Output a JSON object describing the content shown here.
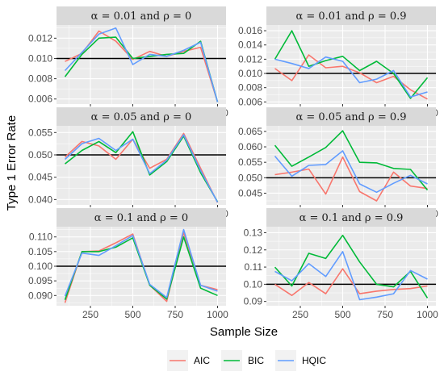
{
  "chart_data": {
    "type": "line",
    "xlabel": "Sample Size",
    "ylabel": "Type 1 Error Rate",
    "legend_position": "bottom",
    "x": [
      100,
      200,
      300,
      400,
      500,
      600,
      700,
      800,
      900,
      1000
    ],
    "x_ticks": [
      250,
      500,
      750,
      1000
    ],
    "series_names": [
      "AIC",
      "BIC",
      "HQIC"
    ],
    "colors": {
      "AIC": "#F8766D",
      "BIC": "#00BA38",
      "HQIC": "#619CFF"
    },
    "panels": [
      {
        "strip": "α = 0.01 and ρ = 0",
        "ylim": [
          0.0055,
          0.0133
        ],
        "yticks": [
          0.006,
          0.008,
          0.01,
          0.012
        ],
        "ytick_labels": [
          "0.006",
          "0.008",
          "0.010",
          "0.012"
        ],
        "ref": 0.01,
        "series": [
          {
            "name": "AIC",
            "values": [
              0.0097,
              0.0105,
              0.0127,
              0.0117,
              0.0099,
              0.0107,
              0.0102,
              0.0107,
              0.0111,
              0.0057
            ]
          },
          {
            "name": "BIC",
            "values": [
              0.0082,
              0.0104,
              0.012,
              0.0121,
              0.01,
              0.0102,
              0.0104,
              0.0105,
              0.0117,
              0.0057
            ]
          },
          {
            "name": "HQIC",
            "values": [
              0.0088,
              0.0106,
              0.0124,
              0.013,
              0.0094,
              0.0104,
              0.0102,
              0.0108,
              0.0116,
              0.0057
            ]
          }
        ]
      },
      {
        "strip": "α = 0.01 and ρ = 0.9",
        "ylim": [
          0.0057,
          0.0168
        ],
        "yticks": [
          0.006,
          0.008,
          0.01,
          0.012,
          0.014,
          0.016
        ],
        "ytick_labels": [
          "0.006",
          "0.008",
          "0.010",
          "0.012",
          "0.014",
          "0.016"
        ],
        "ref": 0.01,
        "series": [
          {
            "name": "AIC",
            "values": [
              0.0107,
              0.009,
              0.0126,
              0.0108,
              0.011,
              0.0101,
              0.0087,
              0.0096,
              0.0077,
              0.0064
            ]
          },
          {
            "name": "BIC",
            "values": [
              0.012,
              0.016,
              0.011,
              0.0118,
              0.0124,
              0.0104,
              0.0117,
              0.01,
              0.0065,
              0.0094
            ]
          },
          {
            "name": "HQIC",
            "values": [
              0.012,
              0.0114,
              0.0107,
              0.0123,
              0.0117,
              0.0087,
              0.0092,
              0.0104,
              0.0067,
              0.0074
            ]
          }
        ]
      },
      {
        "strip": "α = 0.05 and ρ = 0",
        "ylim": [
          0.0388,
          0.0565
        ],
        "yticks": [
          0.04,
          0.045,
          0.05,
          0.055
        ],
        "ytick_labels": [
          "0.040",
          "0.045",
          "0.050",
          "0.055"
        ],
        "ref": 0.05,
        "series": [
          {
            "name": "AIC",
            "values": [
              0.0495,
              0.053,
              0.052,
              0.049,
              0.0535,
              0.047,
              0.049,
              0.0548,
              0.047,
              0.0393
            ]
          },
          {
            "name": "BIC",
            "values": [
              0.048,
              0.051,
              0.053,
              0.0505,
              0.0552,
              0.0455,
              0.0485,
              0.0542,
              0.046,
              0.0395
            ]
          },
          {
            "name": "HQIC",
            "values": [
              0.049,
              0.0525,
              0.0537,
              0.051,
              0.0535,
              0.0458,
              0.0488,
              0.0545,
              0.0465,
              0.0394
            ]
          }
        ]
      },
      {
        "strip": "α = 0.05 and ρ = 0.9",
        "ylim": [
          0.0412,
          0.0668
        ],
        "yticks": [
          0.045,
          0.05,
          0.055,
          0.06,
          0.065
        ],
        "ytick_labels": [
          "0.045",
          "0.050",
          "0.055",
          "0.060",
          "0.065"
        ],
        "ref": 0.05,
        "series": [
          {
            "name": "AIC",
            "values": [
              0.051,
              0.0518,
              0.0528,
              0.0447,
              0.0567,
              0.0455,
              0.0425,
              0.0518,
              0.0473,
              0.0465
            ]
          },
          {
            "name": "BIC",
            "values": [
              0.0605,
              0.0537,
              0.0567,
              0.0598,
              0.0652,
              0.055,
              0.0548,
              0.053,
              0.0527,
              0.046
            ]
          },
          {
            "name": "HQIC",
            "values": [
              0.057,
              0.0505,
              0.054,
              0.0543,
              0.0587,
              0.048,
              0.0453,
              0.0482,
              0.0508,
              0.048
            ]
          }
        ]
      },
      {
        "strip": "α = 0.1 and ρ = 0",
        "ylim": [
          0.0865,
          0.1135
        ],
        "yticks": [
          0.09,
          0.095,
          0.1,
          0.105,
          0.11
        ],
        "ytick_labels": [
          "0.090",
          "0.095",
          "0.100",
          "0.105",
          "0.110"
        ],
        "ref": 0.1,
        "series": [
          {
            "name": "AIC",
            "values": [
              0.0875,
              0.105,
              0.1052,
              0.108,
              0.111,
              0.0935,
              0.088,
              0.1115,
              0.0935,
              0.092
            ]
          },
          {
            "name": "BIC",
            "values": [
              0.0885,
              0.105,
              0.105,
              0.1065,
              0.1097,
              0.0935,
              0.0888,
              0.11,
              0.0925,
              0.09
            ]
          },
          {
            "name": "HQIC",
            "values": [
              0.0898,
              0.1045,
              0.1037,
              0.107,
              0.1105,
              0.0938,
              0.0893,
              0.1125,
              0.0935,
              0.0915
            ]
          }
        ]
      },
      {
        "strip": "α = 0.1 and ρ = 0.9",
        "ylim": [
          0.0875,
          0.1335
        ],
        "yticks": [
          0.09,
          0.1,
          0.11,
          0.12,
          0.13
        ],
        "ytick_labels": [
          "0.09",
          "0.10",
          "0.11",
          "0.12",
          "0.13"
        ],
        "ref": 0.1,
        "series": [
          {
            "name": "AIC",
            "values": [
              0.1,
              0.0935,
              0.101,
              0.0945,
              0.109,
              0.0945,
              0.096,
              0.097,
              0.0975,
              0.099
            ]
          },
          {
            "name": "BIC",
            "values": [
              0.11,
              0.099,
              0.118,
              0.115,
              0.1285,
              0.113,
              0.1,
              0.0985,
              0.1075,
              0.092
            ]
          },
          {
            "name": "HQIC",
            "values": [
              0.1075,
              0.102,
              0.112,
              0.1045,
              0.119,
              0.091,
              0.0925,
              0.0945,
              0.108,
              0.103
            ]
          }
        ]
      }
    ]
  }
}
